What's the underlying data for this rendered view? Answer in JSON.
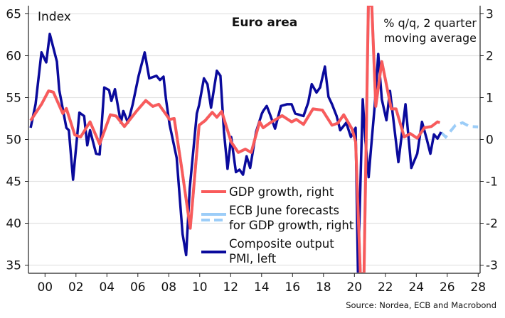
{
  "chart_data": {
    "type": "line",
    "title": "Euro area",
    "left_axis_label": "Index",
    "right_axis_label": [
      "% q/q, 2 quarter",
      "moving average"
    ],
    "source": "Source: Nordea, ECB and Macrobond",
    "left_ylim": [
      34,
      66
    ],
    "right_ylim": [
      -3.2,
      3.2
    ],
    "xlim": [
      1998.93,
      2028.2
    ],
    "left_ticks": [
      35,
      40,
      45,
      50,
      55,
      60,
      65
    ],
    "right_ticks": [
      -3,
      -2,
      -1,
      0,
      1,
      2,
      3
    ],
    "x_ticks": [
      {
        "year": 2000,
        "label": "00"
      },
      {
        "year": 2002,
        "label": "02"
      },
      {
        "year": 2004,
        "label": "04"
      },
      {
        "year": 2006,
        "label": "06"
      },
      {
        "year": 2008,
        "label": "08"
      },
      {
        "year": 2010,
        "label": "10"
      },
      {
        "year": 2012,
        "label": "12"
      },
      {
        "year": 2014,
        "label": "14"
      },
      {
        "year": 2016,
        "label": "16"
      },
      {
        "year": 2018,
        "label": "18"
      },
      {
        "year": 2020,
        "label": "20"
      },
      {
        "year": 2022,
        "label": "22"
      },
      {
        "year": 2024,
        "label": "24"
      },
      {
        "year": 2026,
        "label": "26"
      },
      {
        "year": 2028,
        "label": "28"
      }
    ],
    "grid": true,
    "legend_placement": "bottom-center",
    "series": [
      {
        "name": "GDP growth, right",
        "axis": "right",
        "color": "#f95b5b",
        "x": [
          1999.07,
          1999.77,
          2000.23,
          2000.54,
          2001.15,
          2001.38,
          2001.92,
          2002.3,
          2002.91,
          2003.53,
          2004.22,
          2004.6,
          2005.13,
          2005.9,
          2006.51,
          2006.97,
          2007.35,
          2008.05,
          2008.35,
          2008.81,
          2009.39,
          2009.96,
          2010.35,
          2010.81,
          2011.11,
          2011.42,
          2012.03,
          2012.49,
          2012.95,
          2013.33,
          2013.87,
          2014.1,
          2014.56,
          2015.33,
          2015.94,
          2016.25,
          2016.71,
          2017.32,
          2017.93,
          2018.55,
          2018.93,
          2019.31,
          2019.85,
          2020.08,
          2020.38,
          2020.62,
          2020.9,
          2021.12,
          2021.38,
          2021.77,
          2022.38,
          2022.69,
          2023.22,
          2023.61,
          2024.06,
          2024.52,
          2024.98,
          2025.37,
          2025.52
        ],
        "y": [
          0.45,
          0.84,
          1.16,
          1.13,
          0.62,
          0.74,
          0.11,
          0.06,
          0.42,
          -0.11,
          0.59,
          0.56,
          0.31,
          0.67,
          0.93,
          0.79,
          0.84,
          0.48,
          0.5,
          -0.62,
          -2.12,
          0.34,
          0.45,
          0.65,
          0.53,
          0.67,
          -0.06,
          -0.31,
          -0.23,
          -0.31,
          0.42,
          0.28,
          0.4,
          0.57,
          0.42,
          0.48,
          0.36,
          0.73,
          0.7,
          0.34,
          0.39,
          0.59,
          0.25,
          -0.06,
          -6.5,
          -6.5,
          6.0,
          6.0,
          0.79,
          1.86,
          0.73,
          0.73,
          0.06,
          0.14,
          0.03,
          0.28,
          0.31,
          0.42,
          0.4
        ]
      },
      {
        "name": "ECB June forecasts for GDP growth, right",
        "axis": "right",
        "color": "#9ccdf8",
        "legend_lines": [
          "ECB June forecasts",
          "for GDP growth, right"
        ],
        "x": [
          2025.6,
          2025.9,
          2026.53,
          2026.99,
          2027.45,
          2027.99
        ],
        "y": [
          0.17,
          0.06,
          0.34,
          0.4,
          0.31,
          0.3
        ]
      },
      {
        "name": "Composite output PMI, left",
        "axis": "left",
        "color": "#0a0a9c",
        "legend_lines": [
          "Composite output",
          "PMI, left"
        ],
        "x": [
          1999.07,
          1999.39,
          1999.77,
          2000.08,
          2000.31,
          2000.77,
          2000.92,
          2001.38,
          2001.54,
          2001.81,
          2002.22,
          2002.53,
          2002.73,
          2002.91,
          2003.3,
          2003.53,
          2003.83,
          2004.14,
          2004.29,
          2004.52,
          2004.9,
          2005.06,
          2005.36,
          2005.67,
          2006.05,
          2006.44,
          2006.74,
          2007.2,
          2007.43,
          2007.66,
          2007.82,
          2008.05,
          2008.51,
          2008.89,
          2009.12,
          2009.35,
          2009.81,
          2009.96,
          2010.27,
          2010.5,
          2010.73,
          2011.11,
          2011.34,
          2011.57,
          2011.8,
          2012.03,
          2012.34,
          2012.57,
          2012.8,
          2013.03,
          2013.26,
          2013.64,
          2014.02,
          2014.1,
          2014.33,
          2014.56,
          2014.87,
          2015.25,
          2015.63,
          2015.94,
          2016.17,
          2016.71,
          2017.01,
          2017.24,
          2017.55,
          2017.78,
          2018.09,
          2018.32,
          2018.55,
          2018.85,
          2019.08,
          2019.47,
          2019.77,
          2020.08,
          2020.23,
          2020.54,
          2020.69,
          2020.92,
          2021.07,
          2021.31,
          2021.54,
          2021.77,
          2022.07,
          2022.3,
          2022.84,
          2023.3,
          2023.68,
          2024.06,
          2024.37,
          2024.68,
          2024.91,
          2025.14,
          2025.37,
          2025.6
        ],
        "y": [
          51.4,
          54.2,
          60.4,
          59.2,
          62.6,
          59.3,
          55.9,
          51.4,
          51.1,
          45.2,
          53.2,
          52.8,
          49.3,
          51.1,
          48.3,
          48.2,
          56.2,
          55.9,
          54.6,
          56.0,
          52.0,
          53.4,
          52.0,
          54.2,
          57.6,
          60.4,
          57.3,
          57.6,
          57.1,
          57.5,
          54.8,
          51.8,
          47.8,
          38.7,
          36.2,
          44.1,
          53.1,
          54.1,
          57.3,
          56.6,
          53.8,
          58.2,
          57.6,
          50.9,
          46.5,
          50.3,
          46.1,
          46.4,
          45.8,
          48.0,
          46.6,
          50.9,
          53.1,
          53.4,
          54.0,
          52.9,
          51.3,
          54.0,
          54.2,
          54.2,
          53.1,
          52.8,
          54.4,
          56.6,
          55.6,
          56.2,
          58.7,
          55.1,
          54.2,
          52.8,
          51.1,
          52.0,
          50.3,
          51.4,
          13.6,
          54.8,
          50.3,
          45.5,
          48.9,
          54.0,
          60.2,
          54.8,
          52.3,
          55.8,
          47.3,
          54.2,
          46.6,
          48.3,
          52.1,
          50.0,
          48.3,
          50.6,
          50.1,
          50.9
        ]
      }
    ]
  }
}
